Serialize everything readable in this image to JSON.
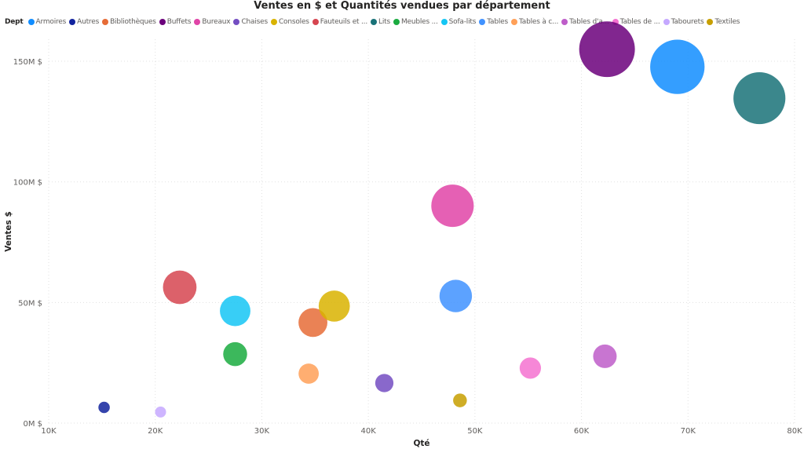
{
  "chart_data": {
    "type": "scatter",
    "title": "Ventes en $ et Quantités vendues par département",
    "xlabel": "Qté",
    "ylabel": "Ventes $",
    "legend_title": "Dept",
    "legend_placement": "top-left",
    "xlim": [
      10000,
      80000
    ],
    "ylim": [
      0,
      160000000
    ],
    "x_ticks": [
      {
        "v": 10000,
        "label": "10K"
      },
      {
        "v": 20000,
        "label": "20K"
      },
      {
        "v": 30000,
        "label": "30K"
      },
      {
        "v": 40000,
        "label": "40K"
      },
      {
        "v": 50000,
        "label": "50K"
      },
      {
        "v": 60000,
        "label": "60K"
      },
      {
        "v": 70000,
        "label": "70K"
      },
      {
        "v": 80000,
        "label": "80K"
      }
    ],
    "y_ticks": [
      {
        "v": 0,
        "label": "0M $"
      },
      {
        "v": 50000000,
        "label": "50M $"
      },
      {
        "v": 100000000,
        "label": "100M $"
      },
      {
        "v": 150000000,
        "label": "150M $"
      }
    ],
    "grid": true,
    "series": [
      {
        "name": "Armoires",
        "legend": "Armoires",
        "color": "#118DFF",
        "x": 69000,
        "y": 147700000
      },
      {
        "name": "Autres",
        "legend": "Autres",
        "color": "#12239E",
        "x": 15200,
        "y": 6500000
      },
      {
        "name": "Bibliothèques",
        "legend": "Bibliothèques",
        "color": "#E66C37",
        "x": 34800,
        "y": 41700000
      },
      {
        "name": "Buffets",
        "legend": "Buffets",
        "color": "#6B007B",
        "x": 62400,
        "y": 155000000
      },
      {
        "name": "Bureaux",
        "legend": "Bureaux",
        "color": "#E044A7",
        "x": 47900,
        "y": 90100000
      },
      {
        "name": "Chaises",
        "legend": "Chaises",
        "color": "#744EC2",
        "x": 41500,
        "y": 16600000
      },
      {
        "name": "Consoles",
        "legend": "Consoles",
        "color": "#D9B300",
        "x": 36800,
        "y": 48500000
      },
      {
        "name": "Fauteuils et ...",
        "legend": "Fauteuils et ...",
        "color": "#D64550",
        "x": 22300,
        "y": 56300000
      },
      {
        "name": "Lits",
        "legend": "Lits",
        "color": "#197278",
        "x": 76700,
        "y": 134700000
      },
      {
        "name": "Meubles ...",
        "legend": "Meubles ...",
        "color": "#1AAB40",
        "x": 27500,
        "y": 28600000
      },
      {
        "name": "Sofa-lits",
        "legend": "Sofa-lits",
        "color": "#15C6F4",
        "x": 27500,
        "y": 46500000
      },
      {
        "name": "Tables",
        "legend": "Tables",
        "color": "#4092FF",
        "x": 48200,
        "y": 52700000
      },
      {
        "name": "Tables à c...",
        "legend": "Tables à c...",
        "color": "#FFA058",
        "x": 34400,
        "y": 20500000
      },
      {
        "name": "Tables d'a...",
        "legend": "Tables d'a...",
        "color": "#BE5DC9",
        "x": 62200,
        "y": 27700000
      },
      {
        "name": "Tables de ...",
        "legend": "Tables de ...",
        "color": "#F472D0",
        "x": 55200,
        "y": 22800000
      },
      {
        "name": "Tabourets",
        "legend": "Tabourets",
        "color": "#C5A8FF",
        "x": 20500,
        "y": 4600000
      },
      {
        "name": "Textiles",
        "legend": "Textiles",
        "color": "#C79F00",
        "x": 48600,
        "y": 9400000
      }
    ]
  }
}
